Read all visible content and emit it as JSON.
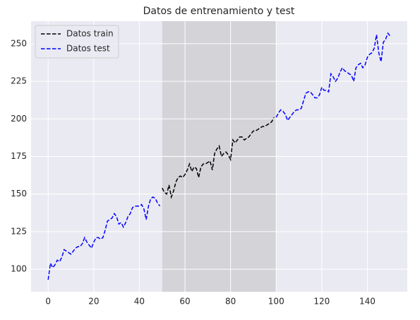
{
  "chart_data": {
    "type": "line",
    "title": "Datos de entrenamiento y test",
    "x": [
      0,
      1,
      2,
      3,
      4,
      5,
      6,
      7,
      8,
      9,
      10,
      11,
      12,
      13,
      14,
      15,
      16,
      17,
      18,
      19,
      20,
      21,
      22,
      23,
      24,
      25,
      26,
      27,
      28,
      29,
      30,
      31,
      32,
      33,
      34,
      35,
      36,
      37,
      38,
      39,
      40,
      41,
      42,
      43,
      44,
      45,
      46,
      47,
      48,
      49,
      50,
      51,
      52,
      53,
      54,
      55,
      56,
      57,
      58,
      59,
      60,
      61,
      62,
      63,
      64,
      65,
      66,
      67,
      68,
      69,
      70,
      71,
      72,
      73,
      74,
      75,
      76,
      77,
      78,
      79,
      80,
      81,
      82,
      83,
      84,
      85,
      86,
      87,
      88,
      89,
      90,
      91,
      92,
      93,
      94,
      95,
      96,
      97,
      98,
      99,
      100,
      101,
      102,
      103,
      104,
      105,
      106,
      107,
      108,
      109,
      110,
      111,
      112,
      113,
      114,
      115,
      116,
      117,
      118,
      119,
      120,
      121,
      122,
      123,
      124,
      125,
      126,
      127,
      128,
      129,
      130,
      131,
      132,
      133,
      134,
      135,
      136,
      137,
      138,
      139,
      140,
      141,
      142,
      143,
      144,
      145,
      146,
      147,
      148,
      149,
      150
    ],
    "series": [
      {
        "name": "Datos train",
        "color": "#000000",
        "values": [
          null,
          null,
          null,
          null,
          null,
          null,
          null,
          null,
          null,
          null,
          null,
          null,
          null,
          null,
          null,
          null,
          null,
          null,
          null,
          null,
          null,
          null,
          null,
          null,
          null,
          null,
          null,
          null,
          null,
          null,
          null,
          null,
          null,
          null,
          null,
          null,
          null,
          null,
          null,
          null,
          null,
          null,
          null,
          null,
          null,
          null,
          null,
          null,
          null,
          null,
          154,
          151,
          150,
          156,
          148,
          152,
          158,
          161,
          162,
          161,
          163,
          166,
          170,
          165,
          168,
          167,
          161,
          168,
          170,
          170,
          171,
          172,
          166,
          177,
          180,
          182,
          175,
          177,
          178,
          176,
          173,
          186,
          184,
          186,
          188,
          188,
          186,
          187,
          188,
          190,
          192,
          192,
          193,
          194,
          195,
          195,
          196,
          197,
          198,
          201,
          null,
          null,
          null,
          null,
          null,
          null,
          null,
          null,
          null,
          null,
          null,
          null,
          null,
          null,
          null,
          null,
          null,
          null,
          null,
          null,
          null,
          null,
          null,
          null,
          null,
          null,
          null,
          null,
          null,
          null,
          null,
          null,
          null,
          null,
          null,
          null,
          null,
          null,
          null,
          null,
          null,
          null,
          null,
          null,
          null,
          null,
          null,
          null,
          null,
          null,
          null
        ]
      },
      {
        "name": "Datos test",
        "color": "#0000ff",
        "values": [
          93,
          104,
          101,
          103,
          106,
          105,
          108,
          113,
          112,
          111,
          110,
          112,
          114,
          115,
          115,
          117,
          121,
          118,
          116,
          114,
          118,
          121,
          121,
          120,
          121,
          126,
          132,
          133,
          134,
          137,
          135,
          130,
          131,
          128,
          131,
          135,
          137,
          141,
          142,
          142,
          142,
          143,
          140,
          133,
          142,
          147,
          148,
          147,
          144,
          142,
          null,
          null,
          null,
          null,
          null,
          null,
          null,
          null,
          null,
          null,
          null,
          null,
          null,
          null,
          null,
          null,
          null,
          null,
          null,
          null,
          null,
          null,
          null,
          null,
          null,
          null,
          null,
          null,
          null,
          null,
          null,
          null,
          null,
          null,
          null,
          null,
          null,
          null,
          null,
          null,
          null,
          null,
          null,
          null,
          null,
          null,
          null,
          null,
          null,
          null,
          201,
          204,
          206,
          205,
          203,
          199,
          201,
          203,
          205,
          206,
          206,
          207,
          212,
          217,
          218,
          218,
          216,
          214,
          214,
          216,
          221,
          219,
          219,
          218,
          230,
          228,
          225,
          227,
          231,
          234,
          232,
          231,
          230,
          229,
          225,
          234,
          236,
          237,
          234,
          236,
          241,
          243,
          244,
          247,
          256,
          244,
          238,
          251,
          253,
          257,
          255
        ]
      }
    ],
    "highlight": [
      50,
      100
    ],
    "highlight_color": "#d3d3d8",
    "xlim": [
      -7.5,
      157.5
    ],
    "ylim": [
      85,
      265
    ],
    "xticks": [
      0,
      20,
      40,
      60,
      80,
      100,
      120,
      140
    ],
    "yticks": [
      100,
      125,
      150,
      175,
      200,
      225,
      250
    ],
    "grid": true,
    "legend": "upper left"
  }
}
